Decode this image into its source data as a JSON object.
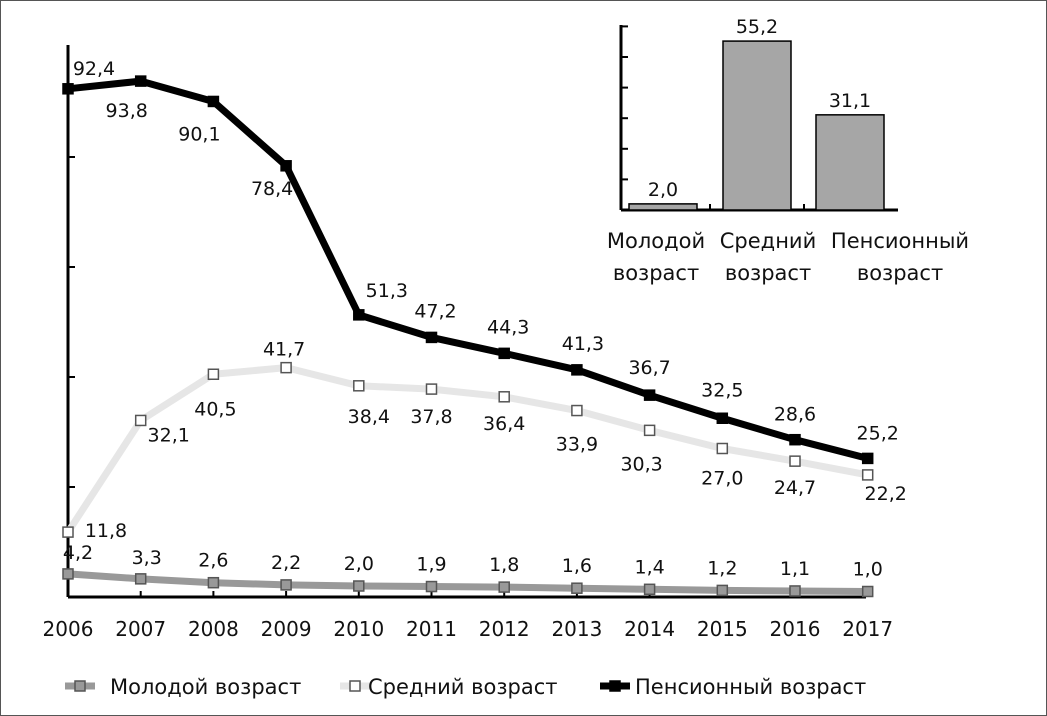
{
  "chart_data": [
    {
      "type": "line",
      "title": "",
      "xlabel": "",
      "ylabel": "",
      "x": [
        "2006",
        "2007",
        "2008",
        "2009",
        "2010",
        "2011",
        "2012",
        "2013",
        "2014",
        "2015",
        "2016",
        "2017"
      ],
      "ylim": [
        0,
        100
      ],
      "grid": false,
      "legend_position": "bottom",
      "series": [
        {
          "name": "Молодой возраст",
          "color": "#999999",
          "marker": "square-filled",
          "values": [
            4.2,
            3.3,
            2.6,
            2.2,
            2.0,
            1.9,
            1.8,
            1.6,
            1.4,
            1.2,
            1.1,
            1.0
          ],
          "labels": [
            "4,2",
            "3,3",
            "2,6",
            "2,2",
            "2,0",
            "1,9",
            "1,8",
            "1,6",
            "1,4",
            "1,2",
            "1,1",
            "1,0"
          ]
        },
        {
          "name": "Средний возраст",
          "color": "#e6e6e6",
          "marker": "square-open",
          "values": [
            11.8,
            32.1,
            40.5,
            41.7,
            38.4,
            37.8,
            36.4,
            33.9,
            30.3,
            27.0,
            24.7,
            22.2
          ],
          "labels": [
            "11,8",
            "32,1",
            "40,5",
            "41,7",
            "38,4",
            "37,8",
            "36,4",
            "33,9",
            "30,3",
            "27,0",
            "24,7",
            "22,2"
          ]
        },
        {
          "name": "Пенсионный возраст",
          "color": "#000000",
          "marker": "square-filled",
          "values": [
            92.4,
            93.8,
            90.1,
            78.4,
            51.3,
            47.2,
            44.3,
            41.3,
            36.7,
            32.5,
            28.6,
            25.2
          ],
          "labels": [
            "92,4",
            "93,8",
            "90,1",
            "78,4",
            "51,3",
            "47,2",
            "44,3",
            "41,3",
            "36,7",
            "32,5",
            "28,6",
            "25,2"
          ]
        }
      ]
    },
    {
      "type": "bar",
      "title": "",
      "xlabel": "",
      "ylabel": "",
      "categories": [
        [
          "Молодой",
          "возраст"
        ],
        [
          "Средний",
          "возраст"
        ],
        [
          "Пенсионный",
          "возраст"
        ]
      ],
      "values": [
        2.0,
        55.2,
        31.1
      ],
      "labels": [
        "2,0",
        "55,2",
        "31,1"
      ],
      "ylim": [
        0,
        60
      ],
      "grid": false,
      "bar_color": "#a6a6a6"
    }
  ]
}
